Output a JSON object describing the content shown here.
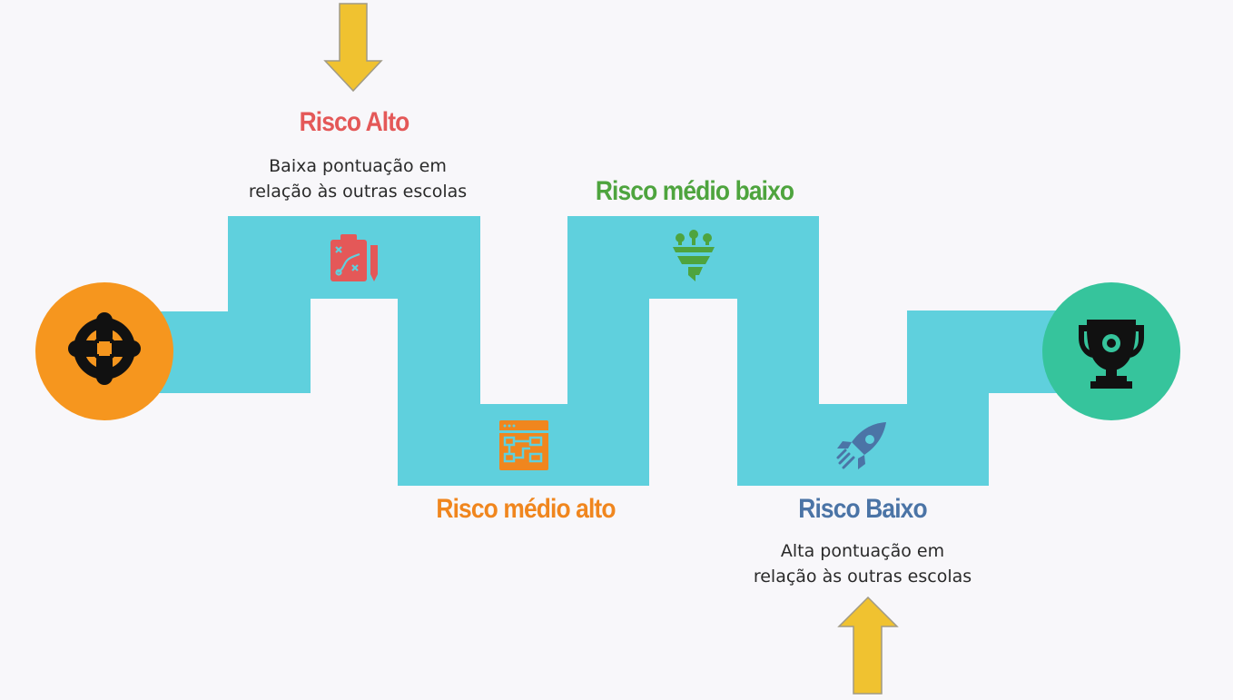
{
  "colors": {
    "background": "#f8f7fa",
    "path": "#5fd0dd",
    "start_circle": "#f6961e",
    "end_circle": "#36c49c",
    "arrow": "#f0c230",
    "arrow_outline": "#a09a86",
    "risk_high": "#e45858",
    "risk_mid_high": "#f0861e",
    "risk_mid_low": "#4ea43e",
    "risk_low": "#4b74a6",
    "icon_dark": "#111111"
  },
  "stages": [
    {
      "title": "Risco Alto",
      "lines": [
        "Baixa pontuação em",
        "relação às outras escolas"
      ],
      "icon": "clipboard-strategy-icon",
      "color_key": "risk_high"
    },
    {
      "title": "Risco médio alto",
      "lines": [],
      "icon": "flowchart-window-icon",
      "color_key": "risk_mid_high"
    },
    {
      "title": "Risco médio baixo",
      "lines": [],
      "icon": "funnel-icon",
      "color_key": "risk_mid_low"
    },
    {
      "title": "Risco Baixo",
      "lines": [
        "Alta pontuação em",
        "relação às outras escolas"
      ],
      "icon": "rocket-icon",
      "color_key": "risk_low"
    }
  ],
  "start_icon": "target-crosshair-icon",
  "end_icon": "trophy-icon",
  "arrows": [
    {
      "icon": "arrow-down-icon",
      "direction": "down"
    },
    {
      "icon": "arrow-up-icon",
      "direction": "up"
    }
  ]
}
